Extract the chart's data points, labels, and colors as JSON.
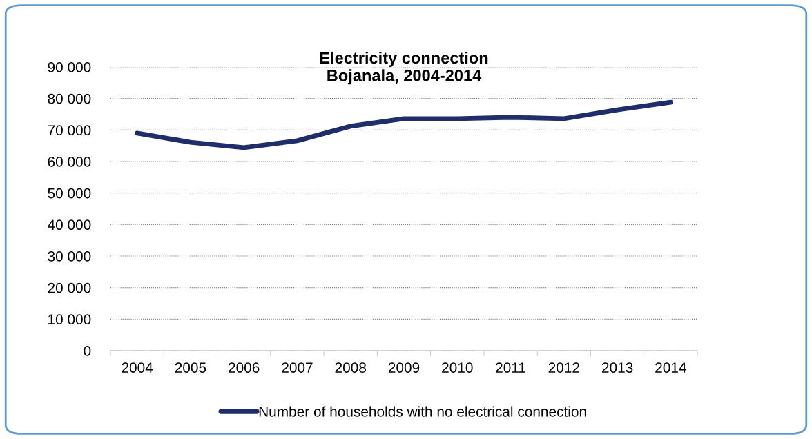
{
  "chart_data": {
    "type": "line",
    "title": "Electricity connection\nBojanala, 2004-2014",
    "categories": [
      "2004",
      "2005",
      "2006",
      "2007",
      "2008",
      "2009",
      "2010",
      "2011",
      "2012",
      "2013",
      "2014"
    ],
    "series": [
      {
        "name": "Number of households with no electrical connection",
        "color": "#1f2d6b",
        "values": [
          69000,
          66100,
          64400,
          66600,
          71200,
          73600,
          73600,
          74000,
          73600,
          76400,
          78800
        ]
      }
    ],
    "ylim": [
      0,
      90000
    ],
    "yticks": [
      {
        "value": 0,
        "label": "0"
      },
      {
        "value": 10000,
        "label": "10 000"
      },
      {
        "value": 20000,
        "label": "20 000"
      },
      {
        "value": 30000,
        "label": "30 000"
      },
      {
        "value": 40000,
        "label": "40 000"
      },
      {
        "value": 50000,
        "label": "50 000"
      },
      {
        "value": 60000,
        "label": "60 000"
      },
      {
        "value": 70000,
        "label": "70 000"
      },
      {
        "value": 80000,
        "label": "80 000"
      },
      {
        "value": 90000,
        "label": "90 000"
      }
    ],
    "grid": "y",
    "legend": "bottom",
    "marker": "none",
    "line_style": "solid"
  }
}
